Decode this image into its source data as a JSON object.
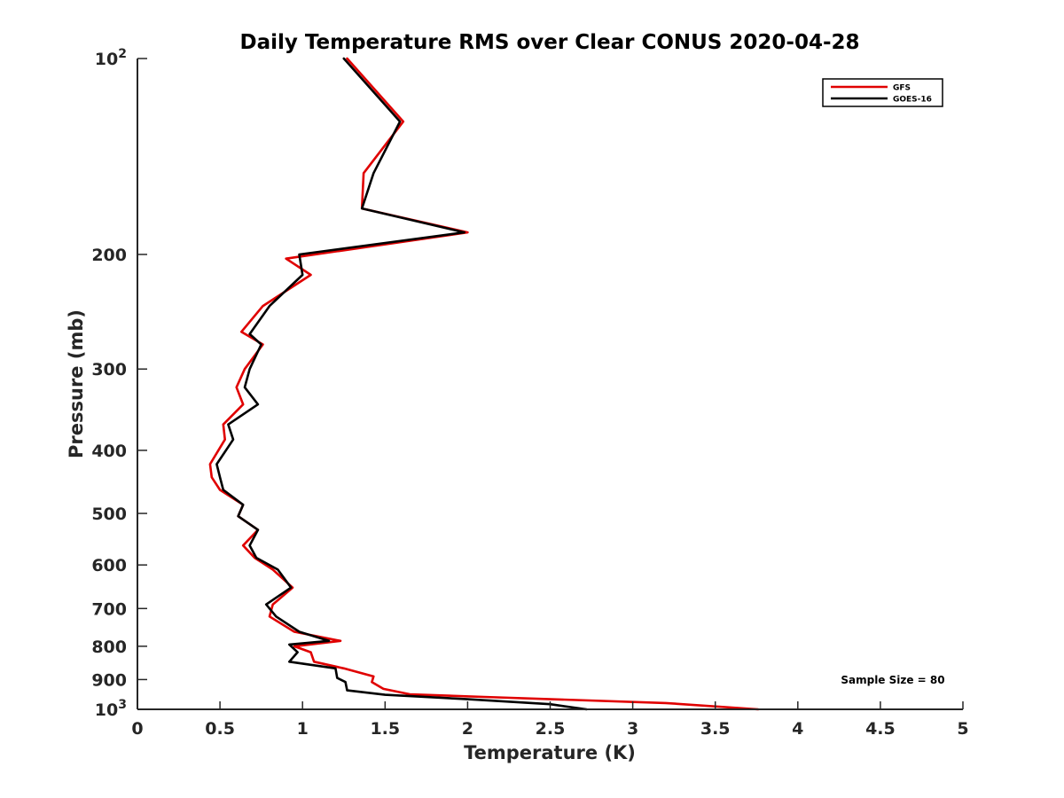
{
  "chart_data": {
    "type": "line",
    "title": "Daily Temperature RMS over Clear CONUS 2020-04-28",
    "xlabel": "Temperature (K)",
    "ylabel": "Pressure (mb)",
    "xlim": [
      0,
      5
    ],
    "ylim": [
      100,
      1000
    ],
    "yscale": "log",
    "yreversed": true,
    "x_ticks": [
      0,
      0.5,
      1,
      1.5,
      2,
      2.5,
      3,
      3.5,
      4,
      4.5,
      5
    ],
    "x_tick_labels": [
      "0",
      "0.5",
      "1",
      "1.5",
      "2",
      "2.5",
      "3",
      "3.5",
      "4",
      "4.5",
      "5"
    ],
    "y_ticks": [
      100,
      200,
      300,
      400,
      500,
      600,
      700,
      800,
      900,
      1000
    ],
    "y_tick_labels": [
      {
        "base": "10",
        "exp": "2"
      },
      {
        "base": "200",
        "exp": ""
      },
      {
        "base": "300",
        "exp": ""
      },
      {
        "base": "400",
        "exp": ""
      },
      {
        "base": "500",
        "exp": ""
      },
      {
        "base": "600",
        "exp": ""
      },
      {
        "base": "700",
        "exp": ""
      },
      {
        "base": "800",
        "exp": ""
      },
      {
        "base": "900",
        "exp": ""
      },
      {
        "base": "10",
        "exp": "3"
      }
    ],
    "grid": false,
    "legend_position": "top-right",
    "annotation": "Sample Size = 80",
    "series": [
      {
        "name": "GFS",
        "color": "#e00000",
        "points": [
          [
            1.27,
            100
          ],
          [
            1.61,
            125
          ],
          [
            1.37,
            150
          ],
          [
            1.36,
            170
          ],
          [
            2.0,
            185
          ],
          [
            0.9,
            203
          ],
          [
            1.05,
            215
          ],
          [
            0.76,
            240
          ],
          [
            0.63,
            263
          ],
          [
            0.76,
            275
          ],
          [
            0.65,
            300
          ],
          [
            0.6,
            320
          ],
          [
            0.64,
            340
          ],
          [
            0.52,
            365
          ],
          [
            0.53,
            385
          ],
          [
            0.44,
            420
          ],
          [
            0.45,
            440
          ],
          [
            0.5,
            460
          ],
          [
            0.64,
            485
          ],
          [
            0.61,
            505
          ],
          [
            0.73,
            530
          ],
          [
            0.64,
            560
          ],
          [
            0.71,
            585
          ],
          [
            0.82,
            610
          ],
          [
            0.94,
            650
          ],
          [
            0.82,
            690
          ],
          [
            0.8,
            720
          ],
          [
            0.95,
            760
          ],
          [
            1.23,
            785
          ],
          [
            0.95,
            800
          ],
          [
            1.05,
            817
          ],
          [
            1.07,
            845
          ],
          [
            1.25,
            865
          ],
          [
            1.43,
            890
          ],
          [
            1.42,
            908
          ],
          [
            1.49,
            930
          ],
          [
            1.65,
            948
          ],
          [
            2.1,
            957
          ],
          [
            3.2,
            978
          ],
          [
            3.76,
            1000
          ]
        ]
      },
      {
        "name": "GOES-16",
        "color": "#000000",
        "points": [
          [
            1.25,
            100
          ],
          [
            1.59,
            125
          ],
          [
            1.43,
            150
          ],
          [
            1.36,
            170
          ],
          [
            1.98,
            185
          ],
          [
            0.98,
            200
          ],
          [
            1.0,
            215
          ],
          [
            0.8,
            240
          ],
          [
            0.68,
            265
          ],
          [
            0.75,
            275
          ],
          [
            0.68,
            300
          ],
          [
            0.65,
            320
          ],
          [
            0.73,
            340
          ],
          [
            0.55,
            365
          ],
          [
            0.58,
            385
          ],
          [
            0.48,
            420
          ],
          [
            0.5,
            440
          ],
          [
            0.52,
            460
          ],
          [
            0.64,
            485
          ],
          [
            0.61,
            505
          ],
          [
            0.73,
            530
          ],
          [
            0.68,
            560
          ],
          [
            0.72,
            585
          ],
          [
            0.85,
            610
          ],
          [
            0.93,
            650
          ],
          [
            0.78,
            690
          ],
          [
            0.84,
            720
          ],
          [
            0.98,
            760
          ],
          [
            1.16,
            785
          ],
          [
            0.92,
            795
          ],
          [
            0.97,
            817
          ],
          [
            0.92,
            845
          ],
          [
            1.2,
            865
          ],
          [
            1.21,
            895
          ],
          [
            1.26,
            908
          ],
          [
            1.27,
            935
          ],
          [
            1.5,
            950
          ],
          [
            2.0,
            965
          ],
          [
            2.5,
            982
          ],
          [
            2.72,
            1000
          ]
        ]
      }
    ]
  }
}
